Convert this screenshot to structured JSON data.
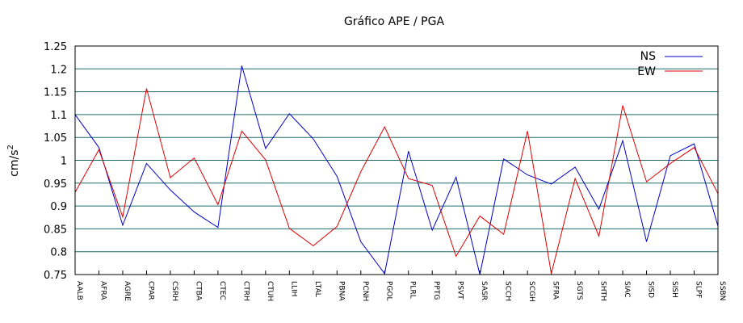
{
  "chart_data": {
    "type": "line",
    "title": "Gráfico  APE / PGA",
    "xlabel": "",
    "ylabel": "cm/s",
    "ylabel_superscript": "2",
    "ylim": [
      0.75,
      1.25
    ],
    "yticks": [
      0.75,
      0.8,
      0.85,
      0.9,
      0.95,
      1,
      1.05,
      1.1,
      1.15,
      1.2,
      1.25
    ],
    "ytick_labels": [
      "0.75",
      "0.8",
      "0.85",
      "0.9",
      "0.95",
      "1",
      "1.05",
      "1.1",
      "1.15",
      "1.2",
      "1.25"
    ],
    "grid": "horizontal",
    "legend_position": "top-right",
    "categories": [
      "AALB",
      "AFRA",
      "AGRE",
      "CPAR",
      "CSRH",
      "CTBA",
      "CTEC",
      "CTRH",
      "CTUH",
      "LLIH",
      "LTAL",
      "PBNA",
      "PCNH",
      "PGOL",
      "PLRL",
      "PPTG",
      "PSVT",
      "SASR",
      "SCCH",
      "SCGH",
      "SFRA",
      "SGTS",
      "SHTH",
      "SIAC",
      "SISD",
      "SISH",
      "SLPF",
      "SSBN"
    ],
    "series": [
      {
        "name": "NS",
        "color": "#0000c8",
        "values": [
          1.1,
          1.028,
          0.858,
          0.993,
          0.935,
          0.887,
          0.853,
          1.207,
          1.026,
          1.102,
          1.047,
          0.965,
          0.822,
          0.752,
          1.02,
          0.847,
          0.963,
          0.75,
          1.003,
          0.968,
          0.948,
          0.985,
          0.893,
          1.043,
          0.822,
          1.01,
          1.036,
          0.856
        ]
      },
      {
        "name": "EW",
        "color": "#e00000",
        "values": [
          0.93,
          1.023,
          0.876,
          1.157,
          0.962,
          1.005,
          0.903,
          1.064,
          1.001,
          0.851,
          0.813,
          0.855,
          0.975,
          1.073,
          0.96,
          0.945,
          0.79,
          0.878,
          0.838,
          1.064,
          0.752,
          0.96,
          0.834,
          1.12,
          0.953,
          0.993,
          1.028,
          0.927
        ]
      }
    ]
  }
}
